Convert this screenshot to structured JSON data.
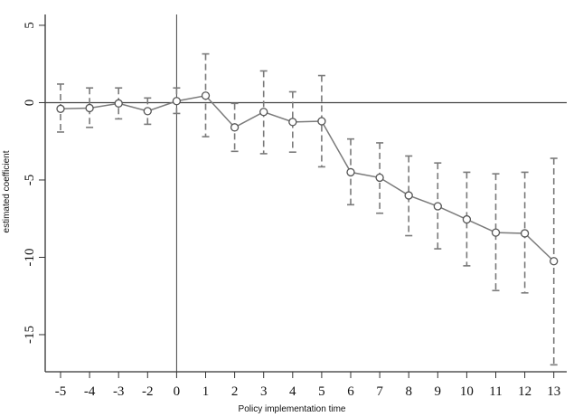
{
  "chart_data": {
    "type": "line",
    "xlabel": "Policy implementation time",
    "ylabel": "estimated coefficient",
    "x_ticks": [
      "-5",
      "-4",
      "-3",
      "-2",
      "0",
      "1",
      "2",
      "3",
      "4",
      "5",
      "6",
      "7",
      "8",
      "9",
      "10",
      "11",
      "12",
      "13"
    ],
    "y_ticks": [
      "5",
      "0",
      "-5",
      "-10",
      "-15"
    ],
    "y_tick_values": [
      5,
      0,
      -5,
      -10,
      -15
    ],
    "ylim": [
      -17.4,
      5.7
    ],
    "series": [
      {
        "x": [
          "-5",
          "-4",
          "-3",
          "-2",
          "0",
          "1",
          "2",
          "3",
          "4",
          "5",
          "6",
          "7",
          "8",
          "9",
          "10",
          "11",
          "12",
          "13"
        ],
        "values": [
          -0.4,
          -0.35,
          -0.05,
          -0.55,
          0.1,
          0.45,
          -1.6,
          -0.6,
          -1.25,
          -1.2,
          -4.5,
          -4.85,
          -6.0,
          -6.7,
          -7.55,
          -8.4,
          -8.45,
          -10.25
        ],
        "ci_lower": [
          -1.9,
          -1.6,
          -1.05,
          -1.4,
          -0.7,
          -2.2,
          -3.15,
          -3.3,
          -3.2,
          -4.15,
          -6.6,
          -7.15,
          -8.6,
          -9.45,
          -10.55,
          -12.15,
          -12.3,
          -16.95
        ],
        "ci_upper": [
          1.2,
          0.95,
          0.95,
          0.3,
          0.95,
          3.15,
          -0.05,
          2.05,
          0.7,
          1.75,
          -2.35,
          -2.6,
          -3.45,
          -3.9,
          -4.5,
          -4.6,
          -4.5,
          -3.6
        ]
      }
    ],
    "reference_lines": {
      "y": 0,
      "x": "0"
    },
    "grid": false,
    "colors": {
      "series": "#7a7a7a",
      "marker": "#555555",
      "axis": "#333333",
      "reference": "#444444"
    }
  }
}
